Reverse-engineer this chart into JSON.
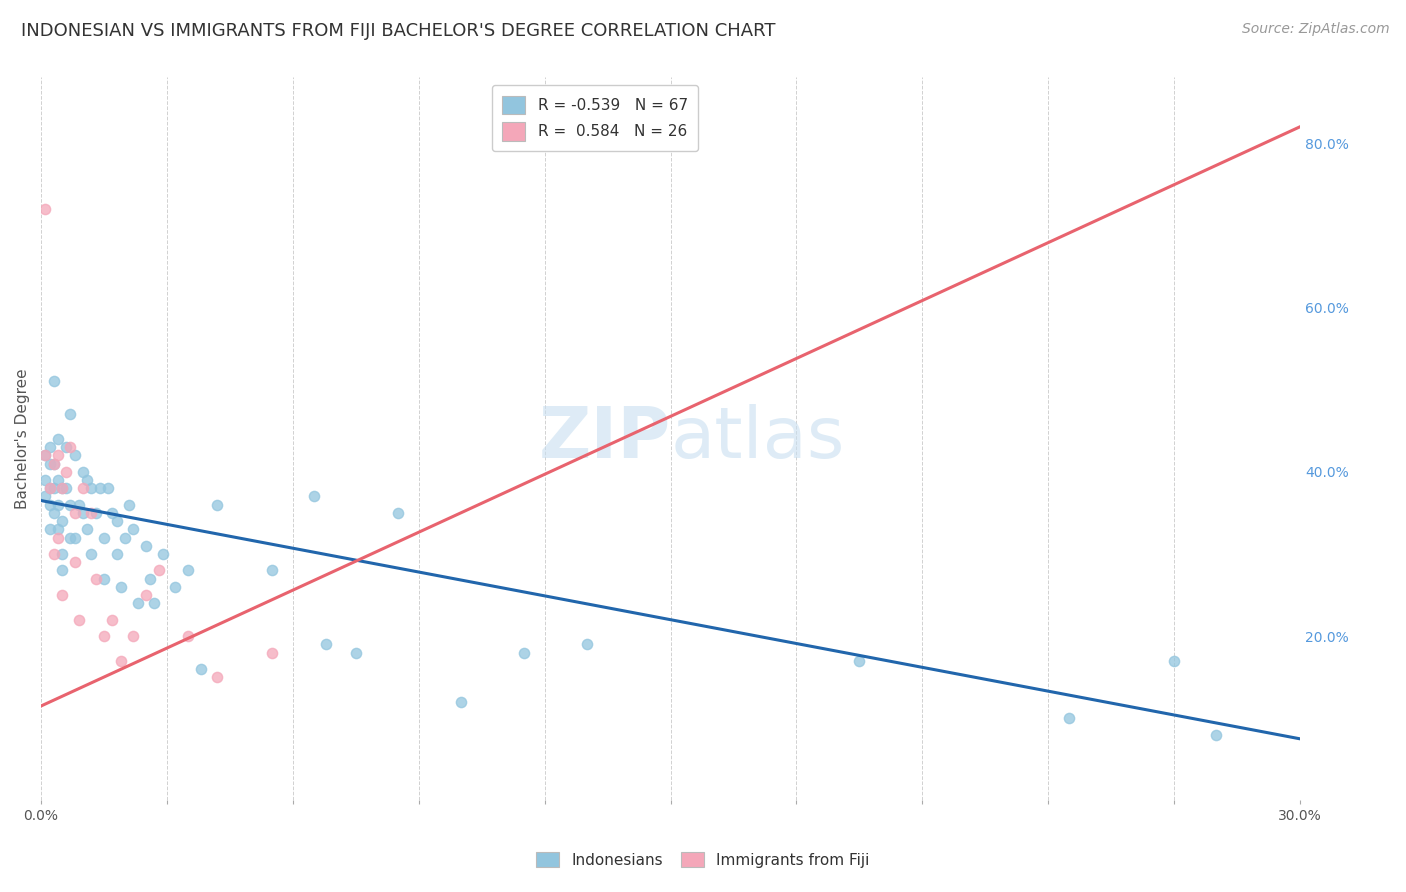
{
  "title": "INDONESIAN VS IMMIGRANTS FROM FIJI BACHELOR'S DEGREE CORRELATION CHART",
  "source": "Source: ZipAtlas.com",
  "ylabel": "Bachelor's Degree",
  "ylabel_right_ticks": [
    "80.0%",
    "60.0%",
    "40.0%",
    "20.0%"
  ],
  "ylabel_right_vals": [
    0.8,
    0.6,
    0.4,
    0.2
  ],
  "watermark_zip": "ZIP",
  "watermark_atlas": "atlas",
  "legend_blue_r": "-0.539",
  "legend_blue_n": "67",
  "legend_pink_r": "0.584",
  "legend_pink_n": "26",
  "blue_color": "#92c5de",
  "pink_color": "#f4a7b9",
  "blue_line_color": "#2166ac",
  "pink_line_color": "#e8636e",
  "xlim": [
    0.0,
    0.3
  ],
  "ylim": [
    0.0,
    0.88
  ],
  "blue_scatter_x": [
    0.001,
    0.001,
    0.001,
    0.002,
    0.002,
    0.002,
    0.002,
    0.002,
    0.003,
    0.003,
    0.003,
    0.003,
    0.004,
    0.004,
    0.004,
    0.004,
    0.005,
    0.005,
    0.005,
    0.005,
    0.006,
    0.006,
    0.007,
    0.007,
    0.007,
    0.008,
    0.008,
    0.009,
    0.01,
    0.01,
    0.011,
    0.011,
    0.012,
    0.012,
    0.013,
    0.014,
    0.015,
    0.015,
    0.016,
    0.017,
    0.018,
    0.018,
    0.019,
    0.02,
    0.021,
    0.022,
    0.023,
    0.025,
    0.026,
    0.027,
    0.029,
    0.032,
    0.035,
    0.038,
    0.042,
    0.055,
    0.065,
    0.068,
    0.075,
    0.085,
    0.1,
    0.115,
    0.13,
    0.195,
    0.245,
    0.27,
    0.28
  ],
  "blue_scatter_y": [
    0.42,
    0.39,
    0.37,
    0.43,
    0.41,
    0.38,
    0.36,
    0.33,
    0.51,
    0.41,
    0.38,
    0.35,
    0.44,
    0.39,
    0.36,
    0.33,
    0.38,
    0.34,
    0.3,
    0.28,
    0.43,
    0.38,
    0.47,
    0.36,
    0.32,
    0.42,
    0.32,
    0.36,
    0.4,
    0.35,
    0.39,
    0.33,
    0.38,
    0.3,
    0.35,
    0.38,
    0.32,
    0.27,
    0.38,
    0.35,
    0.34,
    0.3,
    0.26,
    0.32,
    0.36,
    0.33,
    0.24,
    0.31,
    0.27,
    0.24,
    0.3,
    0.26,
    0.28,
    0.16,
    0.36,
    0.28,
    0.37,
    0.19,
    0.18,
    0.35,
    0.12,
    0.18,
    0.19,
    0.17,
    0.1,
    0.17,
    0.08
  ],
  "pink_scatter_x": [
    0.001,
    0.001,
    0.002,
    0.003,
    0.003,
    0.004,
    0.004,
    0.005,
    0.005,
    0.006,
    0.007,
    0.008,
    0.008,
    0.009,
    0.01,
    0.012,
    0.013,
    0.015,
    0.017,
    0.019,
    0.022,
    0.025,
    0.028,
    0.035,
    0.042,
    0.055
  ],
  "pink_scatter_y": [
    0.42,
    0.72,
    0.38,
    0.41,
    0.3,
    0.42,
    0.32,
    0.38,
    0.25,
    0.4,
    0.43,
    0.35,
    0.29,
    0.22,
    0.38,
    0.35,
    0.27,
    0.2,
    0.22,
    0.17,
    0.2,
    0.25,
    0.28,
    0.2,
    0.15,
    0.18
  ],
  "blue_line_x": [
    0.0,
    0.3
  ],
  "blue_line_y": [
    0.365,
    0.075
  ],
  "pink_line_x": [
    0.0,
    0.3
  ],
  "pink_line_y": [
    0.115,
    0.82
  ],
  "grid_color": "#cccccc",
  "background_color": "#ffffff",
  "title_fontsize": 13,
  "source_fontsize": 10,
  "legend_fontsize": 11,
  "axis_label_fontsize": 11,
  "tick_fontsize": 10,
  "watermark_fontsize_zip": 52,
  "watermark_fontsize_atlas": 52,
  "watermark_color_zip": "#c8dff0",
  "watermark_color_atlas": "#c8dff0",
  "watermark_alpha": 0.6
}
